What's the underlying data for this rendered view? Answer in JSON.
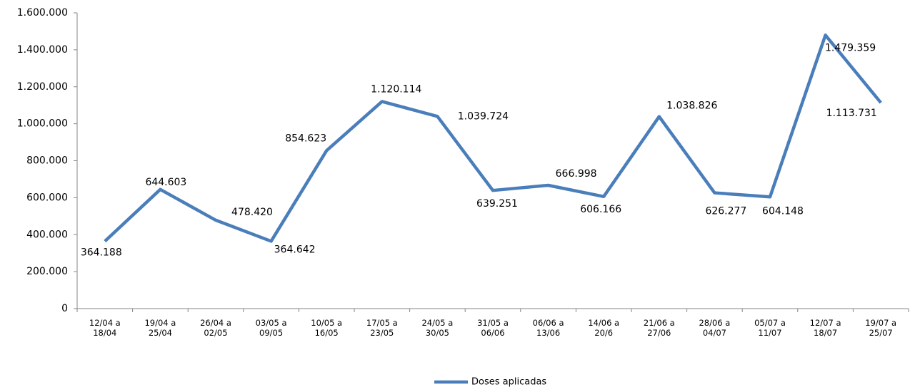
{
  "chart_data": {
    "type": "line",
    "categories": [
      "12/04 a 18/04",
      "19/04 a 25/04",
      "26/04 a 02/05",
      "03/05 a 09/05",
      "10/05 a 16/05",
      "17/05 a 23/05",
      "24/05 a 30/05",
      "31/05 a 06/06",
      "06/06 a 13/06",
      "14/06 a 20/6",
      "21/06 a 27/06",
      "28/06 a 04/07",
      "05/07 a 11/07",
      "12/07 a 18/07",
      "19/07 a 25/07"
    ],
    "series": [
      {
        "name": "Doses aplicadas",
        "color": "#4a7ebb",
        "values": [
          364188,
          644603,
          478420,
          364642,
          854623,
          1120114,
          1039724,
          639251,
          666998,
          606166,
          1038826,
          626277,
          604148,
          1479359,
          1113731
        ],
        "value_labels": [
          "364.188",
          "644.603",
          "478.420",
          "364.642",
          "854.623",
          "1.120.114",
          "1.039.724",
          "639.251",
          "666.998",
          "606.166",
          "1.038.826",
          "626.277",
          "604.148",
          "1.479.359",
          "1.113.731"
        ]
      }
    ],
    "ylim": [
      0,
      1600000
    ],
    "yticks": [
      0,
      {
        "value": 200000,
        "label": "200.000"
      },
      {
        "value": 400000,
        "label": "400.000"
      },
      {
        "value": 600000,
        "label": "600.000"
      },
      {
        "value": 800000,
        "label": "800.000"
      },
      {
        "value": 1000000,
        "label": "1.000.000"
      },
      {
        "value": 1200000,
        "label": "1.200.000"
      },
      {
        "value": 1400000,
        "label": "1.400.000"
      },
      {
        "value": 1600000,
        "label": "1.600.000"
      }
    ],
    "legend": "bottom"
  }
}
